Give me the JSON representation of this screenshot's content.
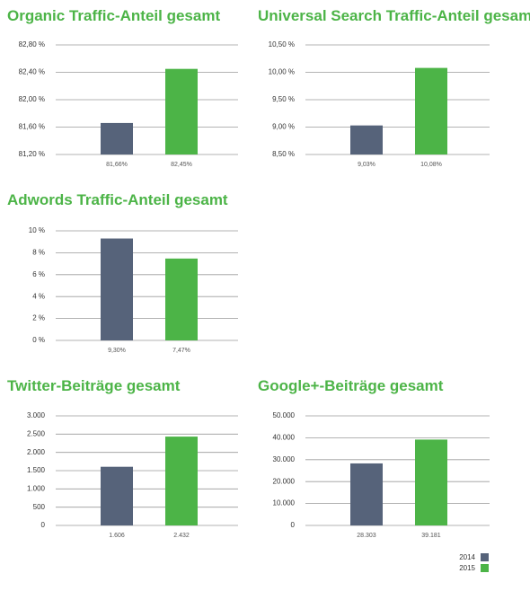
{
  "chart_data": [
    {
      "type": "bar",
      "title": "Organic Traffic-Anteil gesamt",
      "series": [
        {
          "name": "2014",
          "color": "#56637a",
          "values": [
            81.66
          ],
          "value_labels": [
            "81,66%"
          ]
        },
        {
          "name": "2015",
          "color": "#4cb447",
          "values": [
            82.45
          ],
          "value_labels": [
            "82,45%"
          ]
        }
      ],
      "ylim": [
        81.2,
        82.8
      ],
      "yticks": [
        {
          "value": 81.2,
          "label": "81,20 %"
        },
        {
          "value": 81.6,
          "label": "81,60 %"
        },
        {
          "value": 82.0,
          "label": "82,00 %"
        },
        {
          "value": 82.4,
          "label": "82,40 %"
        },
        {
          "value": 82.8,
          "label": "82,80 %"
        }
      ],
      "grid": true
    },
    {
      "type": "bar",
      "title": "Universal Search Traffic-Anteil gesamt",
      "series": [
        {
          "name": "2014",
          "color": "#56637a",
          "values": [
            9.03
          ],
          "value_labels": [
            "9,03%"
          ]
        },
        {
          "name": "2015",
          "color": "#4cb447",
          "values": [
            10.08
          ],
          "value_labels": [
            "10,08%"
          ]
        }
      ],
      "ylim": [
        8.5,
        10.5
      ],
      "yticks": [
        {
          "value": 8.5,
          "label": "8,50 %"
        },
        {
          "value": 9.0,
          "label": "9,00 %"
        },
        {
          "value": 9.5,
          "label": "9,50 %"
        },
        {
          "value": 10.0,
          "label": "10,00 %"
        },
        {
          "value": 10.5,
          "label": "10,50 %"
        }
      ],
      "grid": true
    },
    {
      "type": "bar",
      "title": "Adwords Traffic-Anteil gesamt",
      "series": [
        {
          "name": "2014",
          "color": "#56637a",
          "values": [
            9.3
          ],
          "value_labels": [
            "9,30%"
          ]
        },
        {
          "name": "2015",
          "color": "#4cb447",
          "values": [
            7.47
          ],
          "value_labels": [
            "7,47%"
          ]
        }
      ],
      "ylim": [
        0,
        10
      ],
      "yticks": [
        {
          "value": 0,
          "label": "0 %"
        },
        {
          "value": 2,
          "label": "2 %"
        },
        {
          "value": 4,
          "label": "4 %"
        },
        {
          "value": 6,
          "label": "6 %"
        },
        {
          "value": 8,
          "label": "8 %"
        },
        {
          "value": 10,
          "label": "10 %"
        }
      ],
      "grid": true
    },
    {
      "type": "bar",
      "title": "Twitter-Beiträge gesamt",
      "series": [
        {
          "name": "2014",
          "color": "#56637a",
          "values": [
            1606
          ],
          "value_labels": [
            "1.606"
          ]
        },
        {
          "name": "2015",
          "color": "#4cb447",
          "values": [
            2432
          ],
          "value_labels": [
            "2.432"
          ]
        }
      ],
      "ylim": [
        0,
        3000
      ],
      "yticks": [
        0,
        500,
        {
          "value": 1000,
          "label": "1.000"
        },
        {
          "value": 1500,
          "label": "1.500"
        },
        {
          "value": 2000,
          "label": "2.000"
        },
        {
          "value": 2500,
          "label": "2.500"
        },
        {
          "value": 3000,
          "label": "3.000"
        }
      ],
      "grid": true
    },
    {
      "type": "bar",
      "title": "Google+-Beiträge gesamt",
      "series": [
        {
          "name": "2014",
          "color": "#56637a",
          "values": [
            28303
          ],
          "value_labels": [
            "28.303"
          ]
        },
        {
          "name": "2015",
          "color": "#4cb447",
          "values": [
            39181
          ],
          "value_labels": [
            "39.181"
          ]
        }
      ],
      "ylim": [
        0,
        50000
      ],
      "yticks": [
        0,
        {
          "value": 10000,
          "label": "10.000"
        },
        {
          "value": 20000,
          "label": "20.000"
        },
        {
          "value": 30000,
          "label": "30.000"
        },
        {
          "value": 40000,
          "label": "40.000"
        },
        {
          "value": 50000,
          "label": "50.000"
        }
      ],
      "grid": true
    }
  ]
}
